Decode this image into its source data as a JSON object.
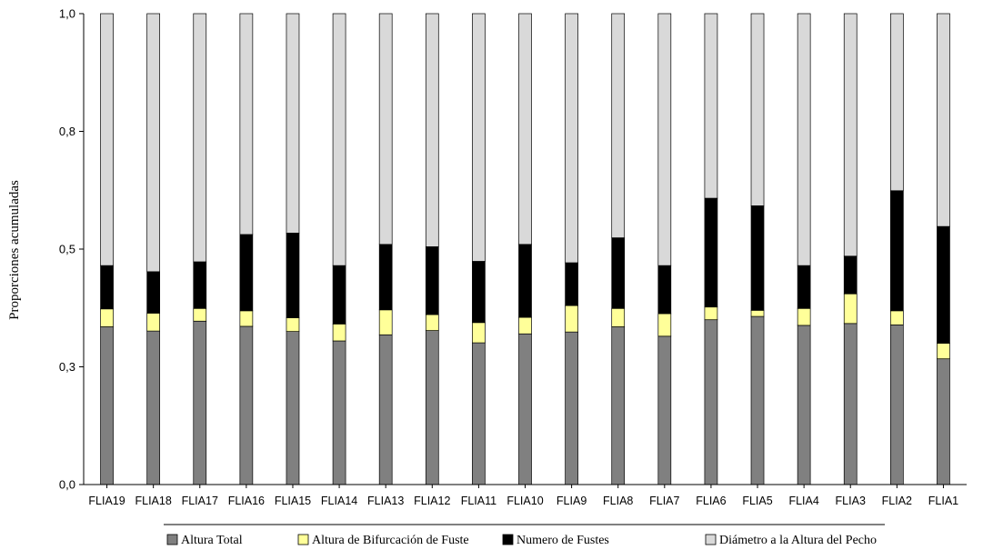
{
  "chart_data": {
    "type": "bar",
    "stacked": true,
    "ylabel": "Proporciones acumuladas",
    "xlabel": "",
    "ylim": [
      0,
      1
    ],
    "y_ticks": [
      0,
      0.25,
      0.5,
      0.75,
      1.0
    ],
    "y_tick_labels": [
      "0,0",
      "0,3",
      "0,5",
      "0,8",
      "1,0"
    ],
    "grid": false,
    "legend_position": "bottom",
    "categories": [
      "FLIA19",
      "FLIA18",
      "FLIA17",
      "FLIA16",
      "FLIA15",
      "FLIA14",
      "FLIA13",
      "FLIA12",
      "FLIA11",
      "FLIA10",
      "FLIA9",
      "FLIA8",
      "FLIA7",
      "FLIA6",
      "FLIA5",
      "FLIA4",
      "FLIA3",
      "FLIA2",
      "FLIA1"
    ],
    "series": [
      {
        "name": "Altura Total",
        "color": "#808080",
        "values": [
          0.335,
          0.326,
          0.347,
          0.336,
          0.325,
          0.305,
          0.318,
          0.327,
          0.301,
          0.32,
          0.324,
          0.335,
          0.315,
          0.35,
          0.357,
          0.338,
          0.342,
          0.339,
          0.267
        ]
      },
      {
        "name": "Altura de Bifurcación de Fuste",
        "color": "#ffff99",
        "values": [
          0.038,
          0.038,
          0.027,
          0.033,
          0.029,
          0.036,
          0.053,
          0.034,
          0.043,
          0.035,
          0.056,
          0.039,
          0.048,
          0.027,
          0.013,
          0.036,
          0.063,
          0.03,
          0.033
        ]
      },
      {
        "name": "Numero de Fustes",
        "color": "#000000",
        "values": [
          0.092,
          0.088,
          0.099,
          0.162,
          0.18,
          0.124,
          0.139,
          0.144,
          0.13,
          0.155,
          0.091,
          0.15,
          0.102,
          0.231,
          0.222,
          0.091,
          0.08,
          0.255,
          0.248
        ]
      },
      {
        "name": "Diámetro a la Altura del Pecho",
        "color": "#d9d9d9",
        "values": [
          0.535,
          0.548,
          0.527,
          0.469,
          0.466,
          0.535,
          0.49,
          0.495,
          0.526,
          0.49,
          0.529,
          0.476,
          0.535,
          0.392,
          0.408,
          0.535,
          0.515,
          0.376,
          0.452
        ]
      }
    ]
  }
}
